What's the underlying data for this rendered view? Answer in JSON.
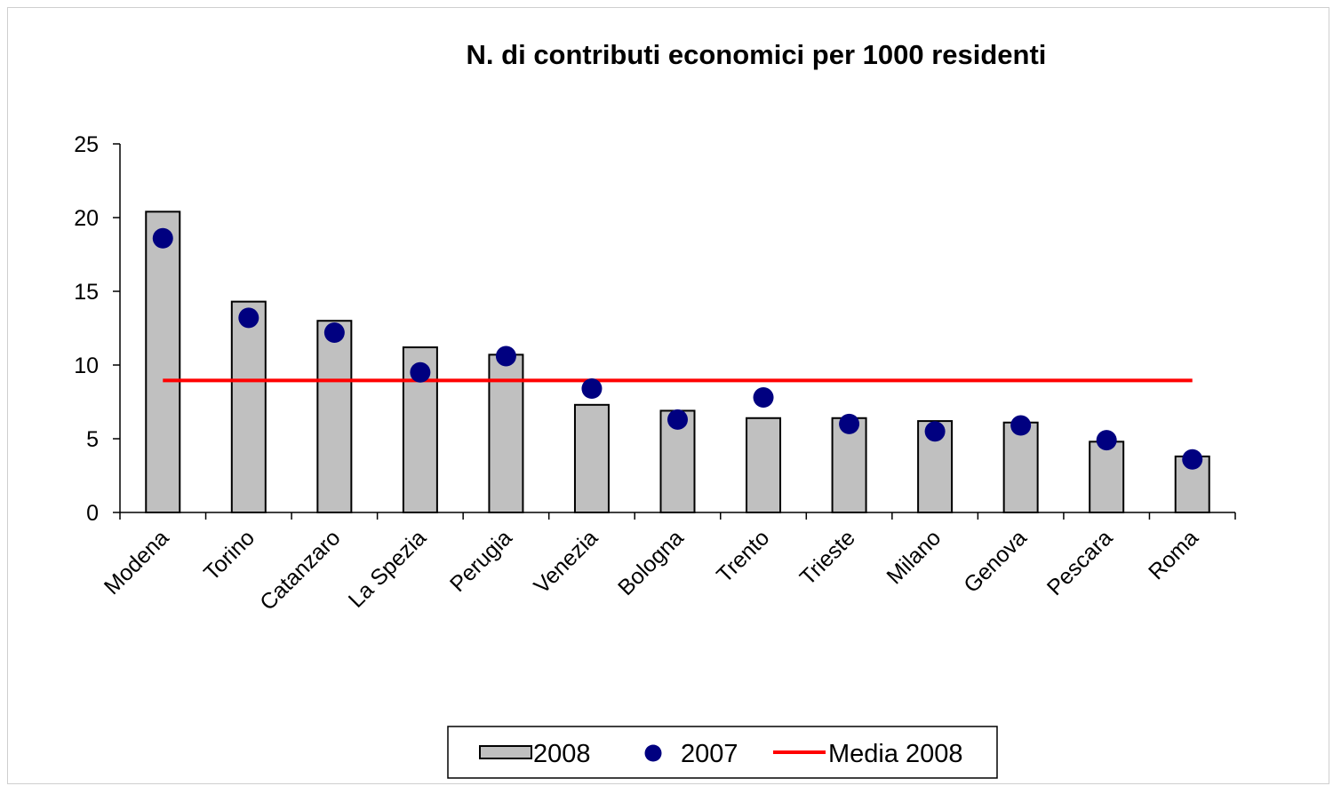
{
  "chart_data": {
    "type": "bar",
    "title": "N. di contributi economici per 1000 residenti",
    "xlabel": "",
    "ylabel": "",
    "ylim": [
      0,
      25
    ],
    "yticks": [
      "0",
      "5",
      "10",
      "15",
      "20",
      "25"
    ],
    "categories": [
      "Modena",
      "Torino",
      "Catanzaro",
      "La Spezia",
      "Perugia",
      "Venezia",
      "Bologna",
      "Trento",
      "Trieste",
      "Milano",
      "Genova",
      "Pescara",
      "Roma"
    ],
    "series": [
      {
        "name": "2008",
        "kind": "bar",
        "color": "#c0c0c0",
        "values": [
          20.4,
          14.3,
          13.0,
          11.2,
          10.7,
          7.3,
          6.9,
          6.4,
          6.4,
          6.2,
          6.1,
          4.8,
          3.8
        ]
      },
      {
        "name": "2007",
        "kind": "marker",
        "color": "#000080",
        "values": [
          18.6,
          13.2,
          12.2,
          9.5,
          10.6,
          8.4,
          6.3,
          7.8,
          6.0,
          5.5,
          5.9,
          4.9,
          3.6
        ]
      },
      {
        "name": "Media 2008",
        "kind": "line",
        "color": "#ff0000",
        "value": 8.95
      }
    ],
    "grid": false,
    "legend_position": "bottom"
  }
}
